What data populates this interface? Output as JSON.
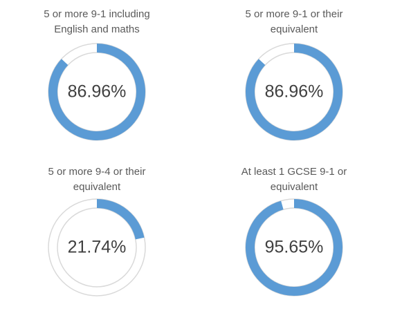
{
  "chart_data": [
    {
      "type": "donut",
      "title": "5 or more 9-1 including\nEnglish and maths",
      "values": [
        86.96
      ],
      "value_labels": [
        "86.96%"
      ],
      "color": "#5b9bd5",
      "ylim": [
        0,
        100
      ]
    },
    {
      "type": "donut",
      "title": "5 or more 9-1 or their\nequivalent",
      "values": [
        86.96
      ],
      "value_labels": [
        "86.96%"
      ],
      "color": "#5b9bd5",
      "ylim": [
        0,
        100
      ]
    },
    {
      "type": "donut",
      "title": "5 or more 9-4 or their\nequivalent",
      "values": [
        21.74
      ],
      "value_labels": [
        "21.74%"
      ],
      "color": "#5b9bd5",
      "ylim": [
        0,
        100
      ]
    },
    {
      "type": "donut",
      "title": "At least 1 GCSE 9-1 or\nequivalent",
      "values": [
        95.65
      ],
      "value_labels": [
        "95.65%"
      ],
      "color": "#5b9bd5",
      "ylim": [
        0,
        100
      ]
    }
  ]
}
